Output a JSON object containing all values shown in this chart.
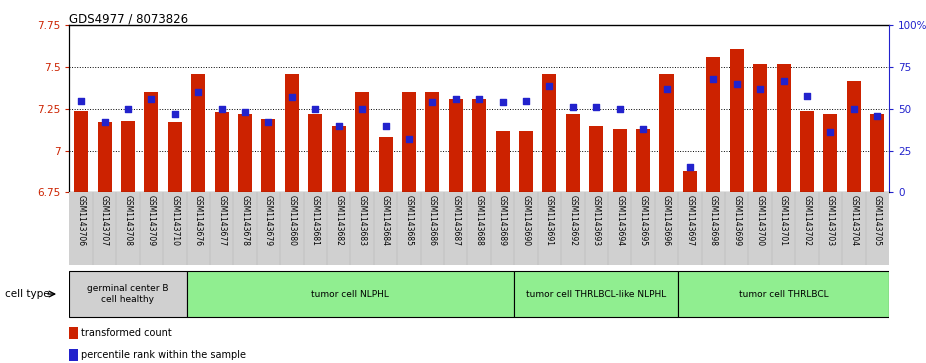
{
  "title": "GDS4977 / 8073826",
  "samples": [
    "GSM1143706",
    "GSM1143707",
    "GSM1143708",
    "GSM1143709",
    "GSM1143710",
    "GSM1143676",
    "GSM1143677",
    "GSM1143678",
    "GSM1143679",
    "GSM1143680",
    "GSM1143681",
    "GSM1143682",
    "GSM1143683",
    "GSM1143684",
    "GSM1143685",
    "GSM1143686",
    "GSM1143687",
    "GSM1143688",
    "GSM1143689",
    "GSM1143690",
    "GSM1143691",
    "GSM1143692",
    "GSM1143693",
    "GSM1143694",
    "GSM1143695",
    "GSM1143696",
    "GSM1143697",
    "GSM1143698",
    "GSM1143699",
    "GSM1143700",
    "GSM1143701",
    "GSM1143702",
    "GSM1143703",
    "GSM1143704",
    "GSM1143705"
  ],
  "bar_values": [
    7.24,
    7.17,
    7.18,
    7.35,
    7.17,
    7.46,
    7.23,
    7.22,
    7.19,
    7.46,
    7.22,
    7.15,
    7.35,
    7.08,
    7.35,
    7.35,
    7.31,
    7.31,
    7.12,
    7.12,
    7.46,
    7.22,
    7.15,
    7.13,
    7.13,
    7.46,
    6.88,
    7.56,
    7.61,
    7.52,
    7.52,
    7.24,
    7.22,
    7.42,
    7.22
  ],
  "percentile_values": [
    55,
    42,
    50,
    56,
    47,
    60,
    50,
    48,
    42,
    57,
    50,
    40,
    50,
    40,
    32,
    54,
    56,
    56,
    54,
    55,
    64,
    51,
    51,
    50,
    38,
    62,
    15,
    68,
    65,
    62,
    67,
    58,
    36,
    50,
    46
  ],
  "ylim_left": [
    6.75,
    7.75
  ],
  "ylim_right": [
    0,
    100
  ],
  "yticks_left": [
    6.75,
    7.0,
    7.25,
    7.5,
    7.75
  ],
  "ytick_labels_left": [
    "6.75",
    "7",
    "7.25",
    "7.5",
    "7.75"
  ],
  "yticks_right": [
    0,
    25,
    50,
    75,
    100
  ],
  "ytick_labels_right": [
    "0",
    "25",
    "50",
    "75",
    "100%"
  ],
  "bar_color": "#cc2200",
  "dot_color": "#2222cc",
  "bar_bottom": 6.75,
  "groups": [
    {
      "label": "germinal center B\ncell healthy",
      "start": 0,
      "end": 5,
      "color": "#d0d0d0"
    },
    {
      "label": "tumor cell NLPHL",
      "start": 5,
      "end": 19,
      "color": "#90ee90"
    },
    {
      "label": "tumor cell THRLBCL-like NLPHL",
      "start": 19,
      "end": 26,
      "color": "#90ee90"
    },
    {
      "label": "tumor cell THRLBCL",
      "start": 26,
      "end": 35,
      "color": "#90ee90"
    }
  ],
  "cell_type_label": "cell type",
  "legend_items": [
    {
      "label": "transformed count",
      "color": "#cc2200"
    },
    {
      "label": "percentile rank within the sample",
      "color": "#2222cc"
    }
  ],
  "dotted_grid_values": [
    7.0,
    7.25,
    7.5
  ],
  "plot_bg": "#ffffff",
  "label_bg": "#d0d0d0"
}
